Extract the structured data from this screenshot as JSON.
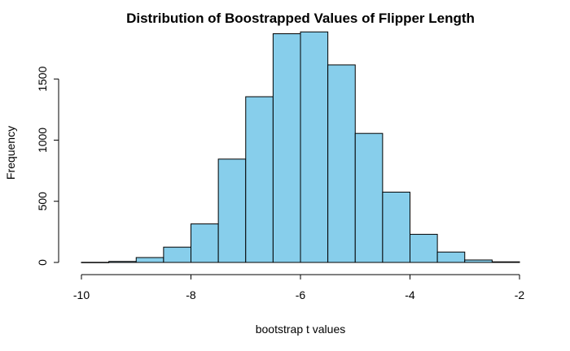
{
  "chart_data": {
    "type": "bar",
    "title": "Distribution of Boostrapped Values of Flipper Length",
    "xlabel": "bootstrap t values",
    "ylabel": "Frequency",
    "xlim": [
      -10,
      -2
    ],
    "ylim": [
      0,
      1900
    ],
    "x_ticks": [
      -10,
      -8,
      -6,
      -4,
      -2
    ],
    "y_ticks": [
      0,
      500,
      1000,
      1500
    ],
    "bins": [
      {
        "x0": -10.0,
        "x1": -9.5,
        "count": 1
      },
      {
        "x0": -9.5,
        "x1": -9.0,
        "count": 8
      },
      {
        "x0": -9.0,
        "x1": -8.5,
        "count": 40
      },
      {
        "x0": -8.5,
        "x1": -8.0,
        "count": 125
      },
      {
        "x0": -8.0,
        "x1": -7.5,
        "count": 315
      },
      {
        "x0": -7.5,
        "x1": -7.0,
        "count": 845
      },
      {
        "x0": -7.0,
        "x1": -6.5,
        "count": 1355
      },
      {
        "x0": -6.5,
        "x1": -6.0,
        "count": 1870
      },
      {
        "x0": -6.0,
        "x1": -5.5,
        "count": 1885
      },
      {
        "x0": -5.5,
        "x1": -5.0,
        "count": 1615
      },
      {
        "x0": -5.0,
        "x1": -4.5,
        "count": 1055
      },
      {
        "x0": -4.5,
        "x1": -4.0,
        "count": 575
      },
      {
        "x0": -4.0,
        "x1": -3.5,
        "count": 230
      },
      {
        "x0": -3.5,
        "x1": -3.0,
        "count": 85
      },
      {
        "x0": -3.0,
        "x1": -2.5,
        "count": 20
      },
      {
        "x0": -2.5,
        "x1": -2.0,
        "count": 5
      }
    ],
    "bar_color": "#87ceeb",
    "bar_border_color": "#000000",
    "grid": false,
    "legend": "none"
  }
}
